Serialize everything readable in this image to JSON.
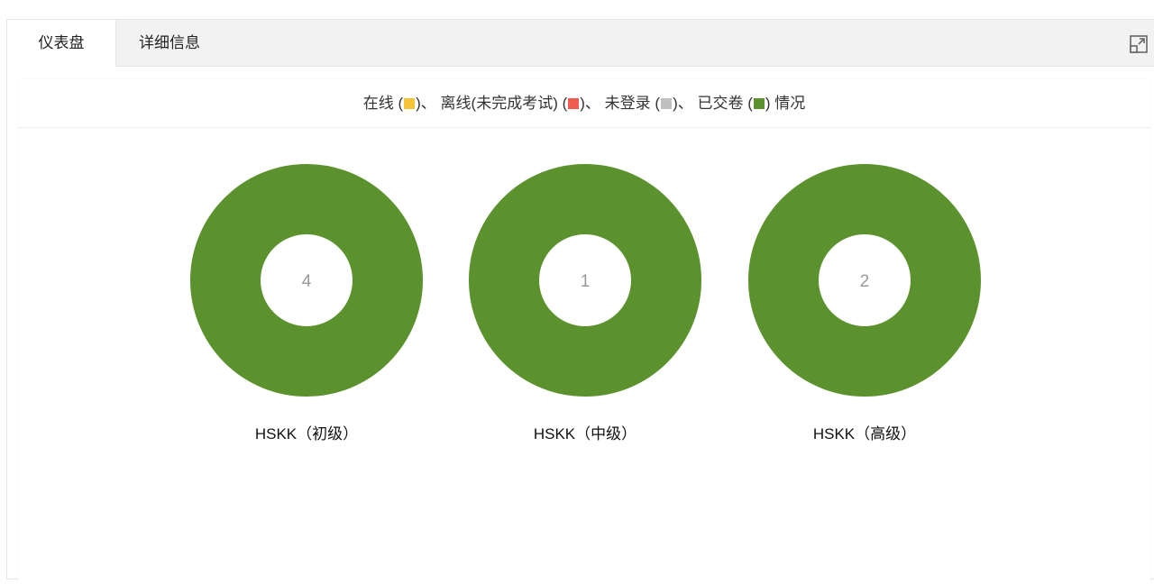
{
  "tabs": [
    {
      "label": "仪表盘",
      "active": true
    },
    {
      "label": "详细信息",
      "active": false
    }
  ],
  "icons": {
    "expand": "expand-icon"
  },
  "legend": {
    "online": "在线 (",
    "online_end": ")、",
    "offline": "离线(未完成考试) (",
    "offline_end": ")、",
    "not_logged": "未登录 (",
    "not_logged_end": ")、",
    "submitted": "已交卷 (",
    "submitted_end": ") 情况"
  },
  "colors": {
    "在线": "#f5c338",
    "离线(未完成考试)": "#ef5b4f",
    "未登录": "#c0c0c0",
    "已交卷": "#5b922d"
  },
  "chart_data": [
    {
      "type": "pie",
      "title": "HSKK（初级）",
      "center_label": "4",
      "categories": [
        "在线",
        "离线(未完成考试)",
        "未登录",
        "已交卷"
      ],
      "values": [
        0,
        0,
        0,
        4
      ]
    },
    {
      "type": "pie",
      "title": "HSKK（中级）",
      "center_label": "1",
      "categories": [
        "在线",
        "离线(未完成考试)",
        "未登录",
        "已交卷"
      ],
      "values": [
        0,
        0,
        0,
        1
      ]
    },
    {
      "type": "pie",
      "title": "HSKK（高级）",
      "center_label": "2",
      "categories": [
        "在线",
        "离线(未完成考试)",
        "未登录",
        "已交卷"
      ],
      "values": [
        0,
        0,
        0,
        2
      ]
    }
  ]
}
